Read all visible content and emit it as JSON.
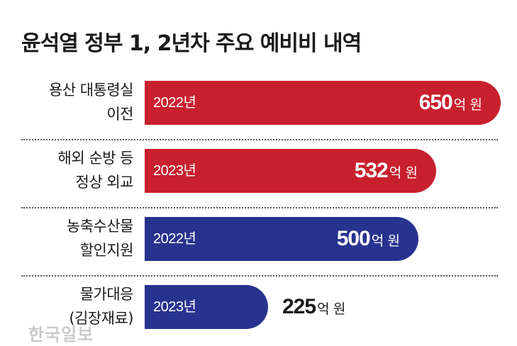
{
  "title": "윤석열 정부 1, 2년차 주요 예비비 내역",
  "colors": {
    "red": "#c8202e",
    "navy": "#27338e"
  },
  "chart_data": {
    "type": "bar",
    "orientation": "horizontal",
    "title": "윤석열 정부 1, 2년차 주요 예비비 내역",
    "unit": "억 원",
    "categories": [
      [
        "용산 대통령실",
        "이전"
      ],
      [
        "해외 순방 등",
        "정상 외교"
      ],
      [
        "농축수산물",
        "할인지원"
      ],
      [
        "물가대응",
        "(김장재료)"
      ]
    ],
    "years": [
      "2022년",
      "2023년",
      "2022년",
      "2023년"
    ],
    "values": [
      650,
      532,
      500,
      225
    ],
    "bar_colors": [
      "#c8202e",
      "#c8202e",
      "#27338e",
      "#27338e"
    ],
    "value_unit_label": "억 원",
    "xlim": [
      0,
      650
    ],
    "grid": false,
    "legend": "none"
  },
  "watermark": "한국일보"
}
